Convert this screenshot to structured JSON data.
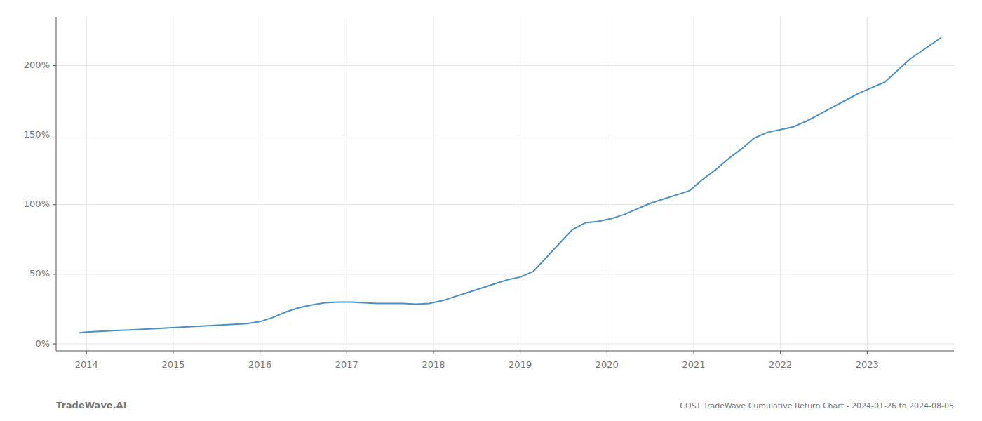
{
  "chart_data": {
    "type": "line",
    "title": "COST TradeWave Cumulative Return Chart - 2024-01-26 to 2024-08-05",
    "annotations": [
      "TradeWave.AI"
    ],
    "color": "#4a90c4",
    "grid": true,
    "x": [
      2013.92,
      2014.0,
      2014.15,
      2014.3,
      2014.5,
      2014.65,
      2014.8,
      2014.95,
      2015.1,
      2015.25,
      2015.4,
      2015.55,
      2015.7,
      2015.85,
      2016.0,
      2016.15,
      2016.3,
      2016.45,
      2016.6,
      2016.75,
      2016.9,
      2017.05,
      2017.2,
      2017.35,
      2017.5,
      2017.65,
      2017.8,
      2017.95,
      2018.1,
      2018.25,
      2018.4,
      2018.55,
      2018.7,
      2018.85,
      2019.0,
      2019.15,
      2019.3,
      2019.45,
      2019.6,
      2019.75,
      2019.9,
      2020.05,
      2020.2,
      2020.35,
      2020.5,
      2020.65,
      2020.8,
      2020.95,
      2021.1,
      2021.25,
      2021.4,
      2021.55,
      2021.7,
      2021.85,
      2022.0,
      2022.15,
      2022.3,
      2022.45,
      2022.6,
      2022.75,
      2022.9,
      2023.05,
      2023.2,
      2023.5,
      2023.85
    ],
    "values": [
      8,
      8.5,
      9,
      9.5,
      10,
      10.5,
      11,
      11.5,
      12,
      12.5,
      13,
      13.5,
      14,
      14.5,
      16,
      19,
      23,
      26,
      28,
      29.5,
      30,
      30,
      29.5,
      29,
      29,
      29,
      28.5,
      29,
      31,
      34,
      37,
      40,
      43,
      46,
      48,
      52,
      62,
      72,
      82,
      87,
      88,
      90,
      93,
      97,
      101,
      104,
      107,
      110,
      118,
      125,
      133,
      140,
      148,
      152,
      154,
      156,
      160,
      165,
      170,
      175,
      180,
      184,
      188,
      205,
      220
    ],
    "xlim": [
      2013.65,
      2024.0
    ],
    "xticks": [
      2014,
      2015,
      2016,
      2017,
      2018,
      2019,
      2020,
      2021,
      2022,
      2023
    ],
    "ylim": [
      -5,
      235
    ],
    "yticks": [
      {
        "value": 0,
        "label": "0%"
      },
      {
        "value": 50,
        "label": "50%"
      },
      {
        "value": 100,
        "label": "100%"
      },
      {
        "value": 150,
        "label": "150%"
      },
      {
        "value": 200,
        "label": "200%"
      }
    ]
  }
}
